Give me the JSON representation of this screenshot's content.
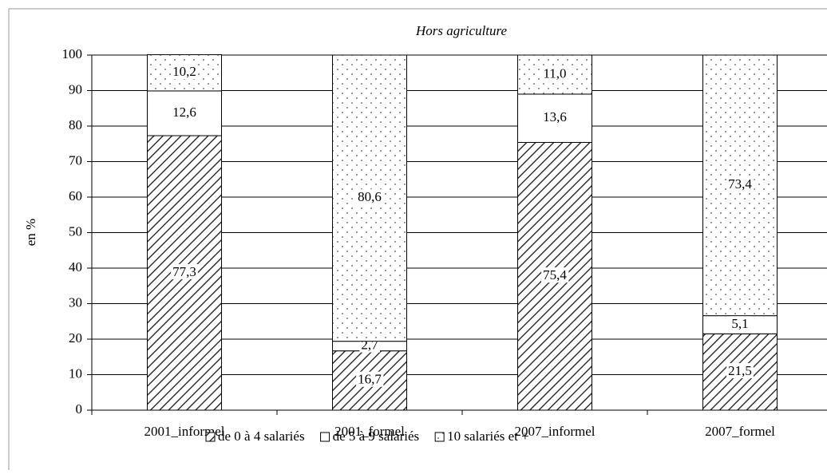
{
  "chart_data": {
    "type": "stacked_bar",
    "title": "Hors agriculture",
    "y_label": "en %",
    "categories": [
      "2001_informel",
      "2001_formel",
      "2007_informel",
      "2007_formel"
    ],
    "series": [
      {
        "name": "de 0 à 4 salariés",
        "color": "#333333",
        "pattern": "hatch",
        "values": [
          77.3,
          16.7,
          75.4,
          21.5
        ],
        "value_labels": [
          "77,3",
          "16,7",
          "75,4",
          "21,5"
        ]
      },
      {
        "name": "de 5 à 9 salariés",
        "color": "#ffffff",
        "pattern": "solid",
        "values": [
          12.6,
          2.7,
          13.6,
          5.1
        ],
        "value_labels": [
          "12,6",
          "2,7",
          "13,6",
          "5,1"
        ]
      },
      {
        "name": "10 salariés et +",
        "color": "#555555",
        "pattern": "dots",
        "values": [
          10.2,
          80.6,
          11.0,
          73.4
        ],
        "value_labels": [
          "10,2",
          "80,6",
          "11,0",
          "73,4"
        ]
      }
    ],
    "ylim": [
      0,
      100
    ],
    "yticks": [
      0,
      10,
      20,
      30,
      40,
      50,
      60,
      70,
      80,
      90,
      100
    ],
    "grid": true,
    "legend": "bottom"
  }
}
